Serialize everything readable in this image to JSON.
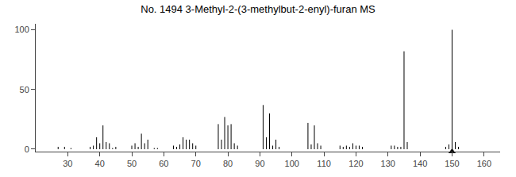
{
  "chart_data": {
    "type": "stem",
    "title": "No. 1494 3-Methyl-2-(3-methylbut-2-enyl)-furan MS",
    "x": [
      27,
      29,
      31,
      37,
      38,
      39,
      40,
      41,
      42,
      43,
      44,
      45,
      50,
      51,
      52,
      53,
      54,
      55,
      57,
      58,
      63,
      64,
      65,
      66,
      67,
      68,
      69,
      70,
      77,
      78,
      79,
      80,
      81,
      82,
      83,
      91,
      92,
      93,
      94,
      95,
      96,
      105,
      106,
      107,
      108,
      109,
      115,
      116,
      117,
      118,
      119,
      120,
      121,
      122,
      131,
      132,
      133,
      134,
      135,
      136,
      148,
      149,
      150,
      151,
      152
    ],
    "values": [
      2,
      2,
      1,
      2,
      3,
      10,
      5,
      20,
      6,
      5,
      1,
      2,
      3,
      5,
      2,
      13,
      5,
      8,
      1,
      1,
      3,
      2,
      4,
      10,
      8,
      8,
      5,
      3,
      21,
      8,
      27,
      20,
      21,
      5,
      3,
      37,
      10,
      30,
      3,
      8,
      2,
      22,
      4,
      20,
      5,
      3,
      3,
      2,
      3,
      2,
      5,
      3,
      3,
      2,
      3,
      3,
      2,
      2,
      82,
      6,
      2,
      4,
      100,
      6,
      2
    ],
    "color": "#000000",
    "base_peak": 150,
    "marker": "triangle-up",
    "xlim": [
      20,
      165
    ],
    "ylim": [
      -2,
      105
    ],
    "xticks": [
      30,
      40,
      50,
      60,
      70,
      80,
      90,
      100,
      110,
      120,
      130,
      140,
      150,
      160
    ],
    "yticks": [
      0,
      50,
      100
    ],
    "grid": false
  }
}
